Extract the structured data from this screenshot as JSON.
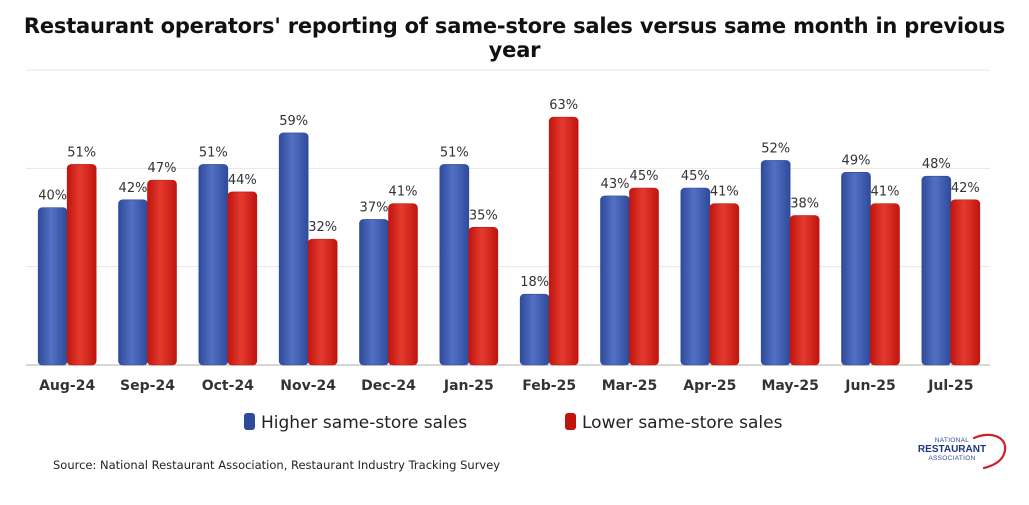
{
  "chart_data": {
    "type": "bar",
    "title": "Restaurant operators' reporting of same-store sales versus same month in previous year",
    "categories": [
      "Aug-24",
      "Sep-24",
      "Oct-24",
      "Nov-24",
      "Dec-24",
      "Jan-25",
      "Feb-25",
      "Mar-25",
      "Apr-25",
      "May-25",
      "Jun-25",
      "Jul-25"
    ],
    "series": [
      {
        "name": "Higher same-store sales",
        "values": [
          40,
          42,
          51,
          59,
          37,
          51,
          18,
          43,
          45,
          52,
          49,
          48
        ]
      },
      {
        "name": "Lower same-store sales",
        "values": [
          51,
          47,
          44,
          32,
          41,
          35,
          63,
          45,
          41,
          38,
          41,
          42
        ]
      }
    ],
    "value_suffix": "%",
    "ylim": [
      0,
      75
    ],
    "gridlines": [
      0,
      25,
      50,
      75
    ],
    "legend_position": "bottom",
    "xlabel": "",
    "ylabel": ""
  },
  "colors": {
    "higher": "#2e4a9a",
    "higher_light": "#5470c4",
    "lower": "#c0150f",
    "lower_light": "#e43a2e",
    "grid": "#e6e6e6",
    "axis": "#c9c9c9"
  },
  "source": "Source: National Restaurant Association, Restaurant Industry Tracking Survey",
  "logo": {
    "line1": "NATIONAL",
    "line2": "RESTAURANT",
    "line3": "ASSOCIATION"
  }
}
